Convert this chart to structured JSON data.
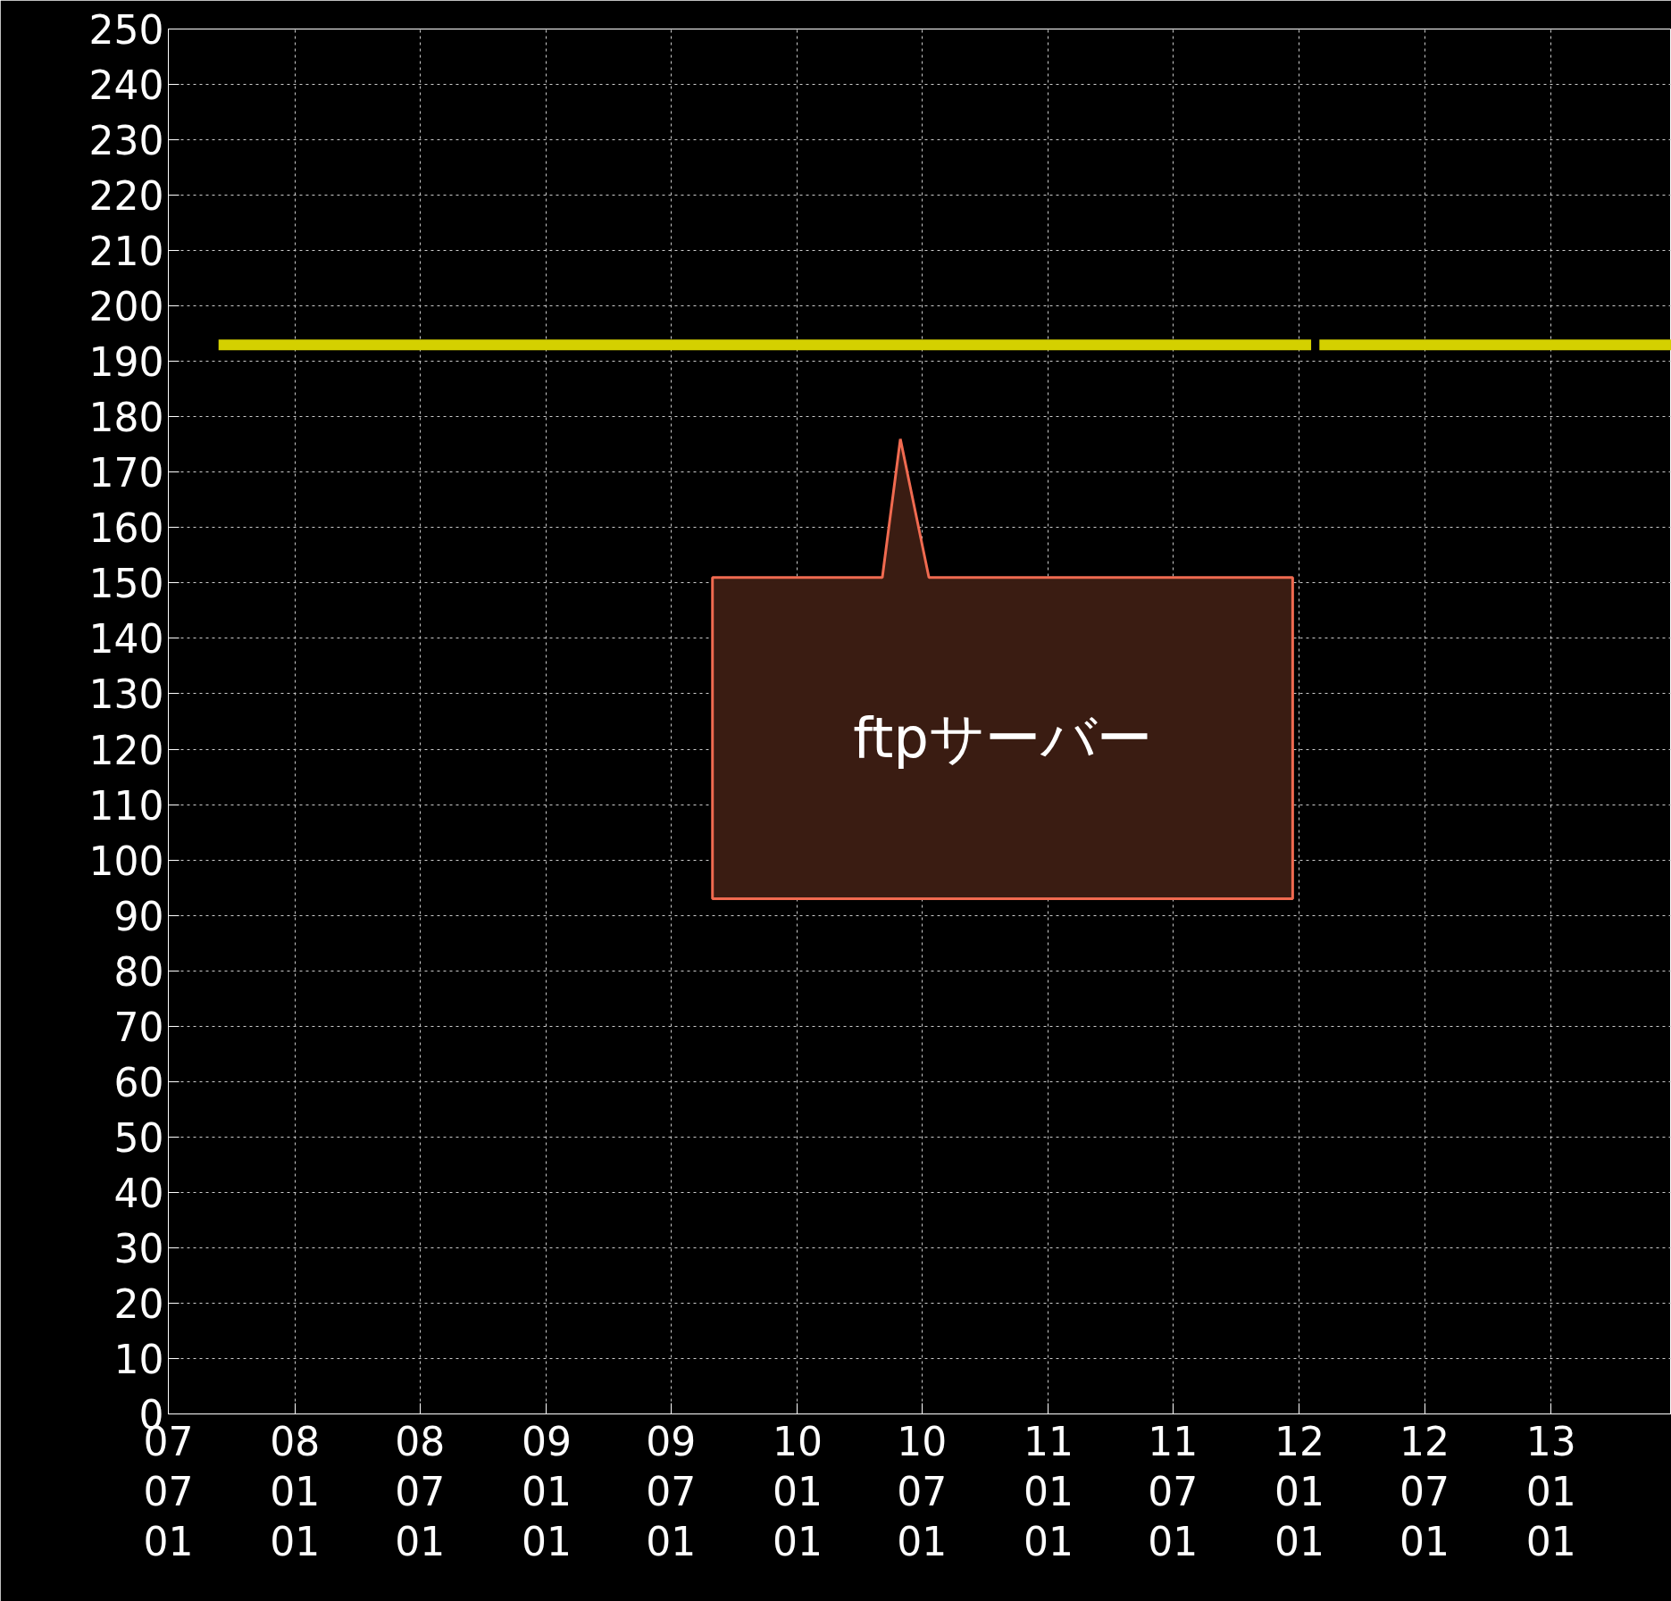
{
  "chart_data": {
    "type": "line",
    "x": [
      "2007-09-12",
      "2012-01-18",
      "2012-01-24",
      "2012-01-30",
      "2013-06-25"
    ],
    "series": [
      {
        "color": "#d4d000",
        "values": [
          193,
          193,
          null,
          193,
          193
        ]
      }
    ],
    "xlim": [
      "2007-07-01",
      "2013-06-25"
    ],
    "xticks": [
      {
        "value": "2007-07-01",
        "label": "07\n07\n01"
      },
      {
        "value": "2008-01-01",
        "label": "08\n01\n01"
      },
      {
        "value": "2008-07-01",
        "label": "08\n07\n01"
      },
      {
        "value": "2009-01-01",
        "label": "09\n01\n01"
      },
      {
        "value": "2009-07-01",
        "label": "09\n07\n01"
      },
      {
        "value": "2010-01-01",
        "label": "10\n01\n01"
      },
      {
        "value": "2010-07-01",
        "label": "10\n07\n01"
      },
      {
        "value": "2011-01-01",
        "label": "11\n01\n01"
      },
      {
        "value": "2011-07-01",
        "label": "11\n07\n01"
      },
      {
        "value": "2012-01-01",
        "label": "12\n01\n01"
      },
      {
        "value": "2012-07-01",
        "label": "12\n07\n01"
      },
      {
        "value": "2013-01-01",
        "label": "13\n01\n01"
      }
    ],
    "ylim": [
      0,
      250
    ],
    "yticks": [
      0,
      10,
      20,
      30,
      40,
      50,
      60,
      70,
      80,
      90,
      100,
      110,
      120,
      130,
      140,
      150,
      160,
      170,
      180,
      190,
      200,
      210,
      220,
      230,
      240,
      250
    ],
    "grid": true,
    "line_style": "solid",
    "marker": "none",
    "annotations": [
      "ftpサーバー"
    ]
  }
}
